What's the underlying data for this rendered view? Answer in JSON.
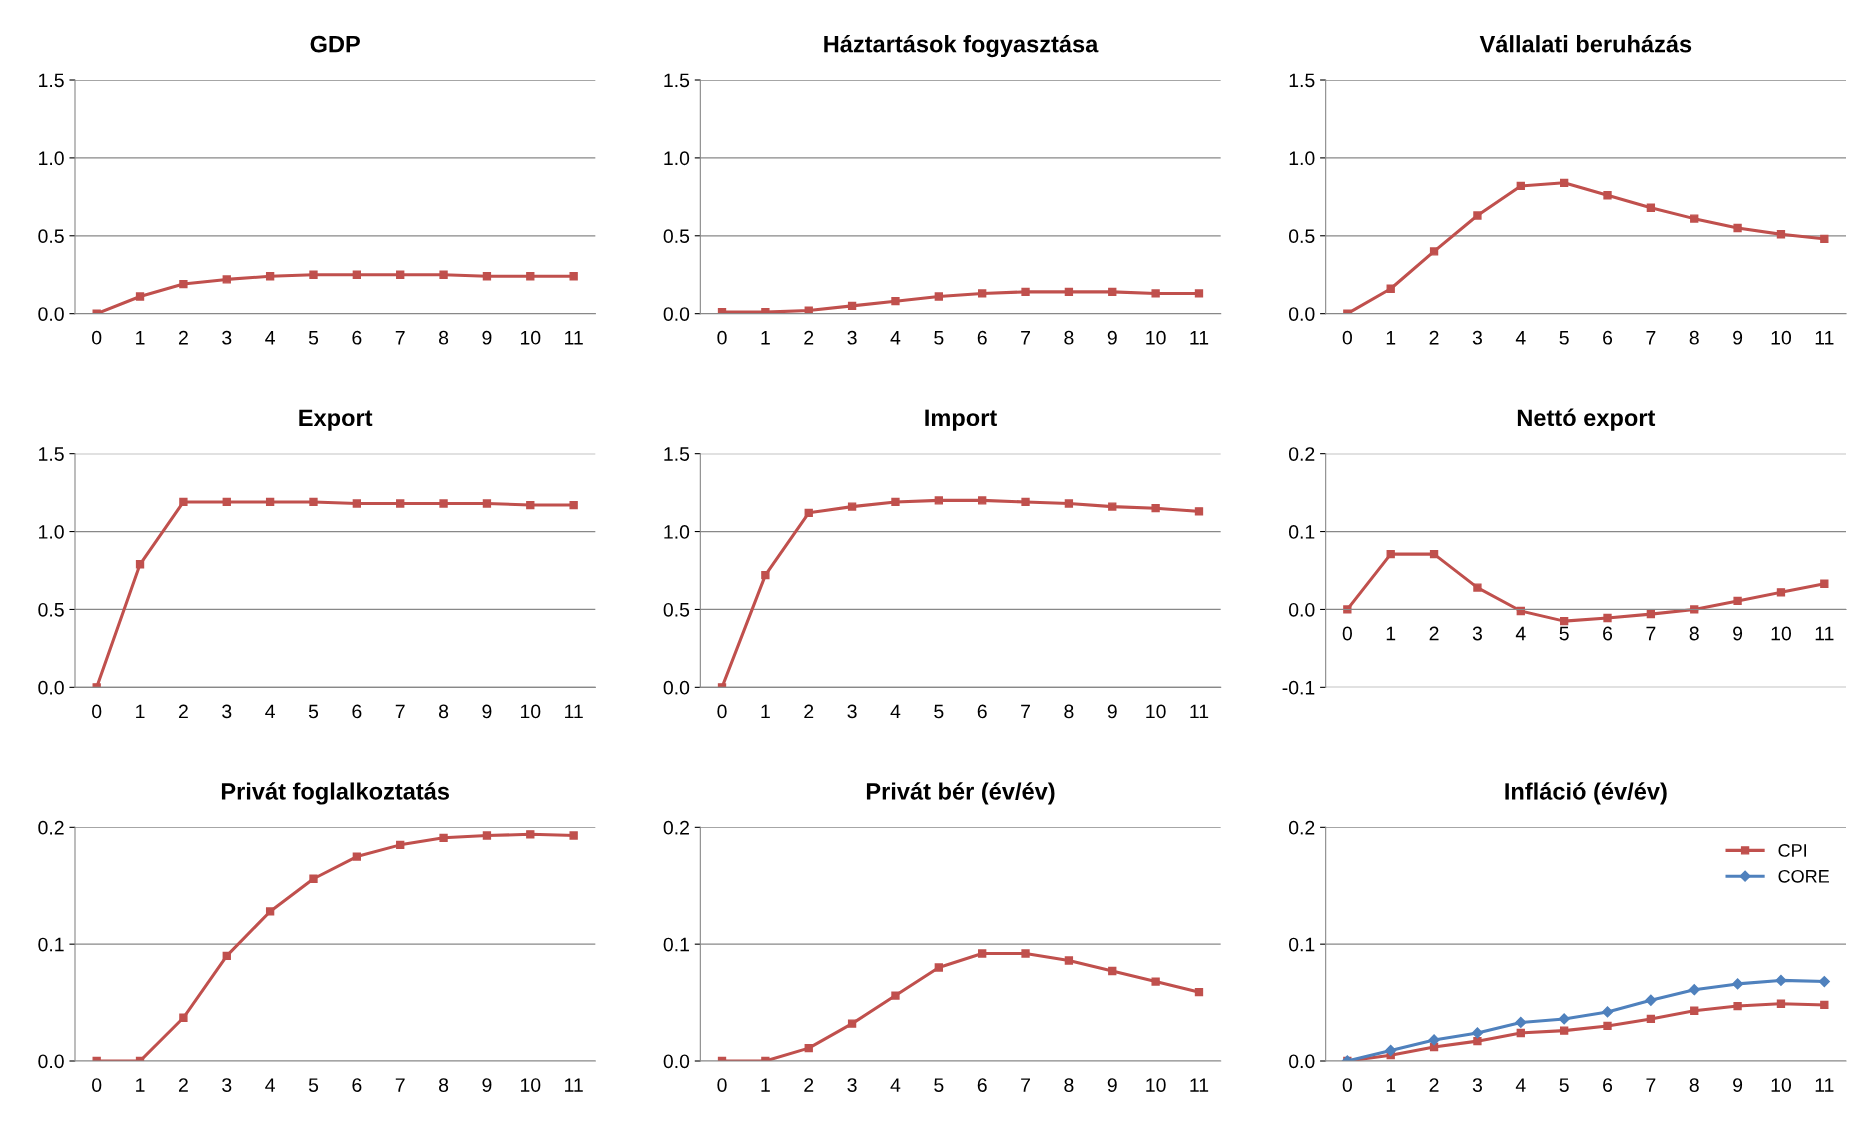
{
  "chart_data": [
    {
      "type": "line",
      "title": "GDP",
      "categories": [
        "0",
        "1",
        "2",
        "3",
        "4",
        "5",
        "6",
        "7",
        "8",
        "9",
        "10",
        "11"
      ],
      "series": [
        {
          "color": "#c0504d",
          "values": [
            0,
            0.11,
            0.19,
            0.22,
            0.24,
            0.25,
            0.25,
            0.25,
            0.25,
            0.24,
            0.24,
            0.24
          ]
        }
      ],
      "ylim": [
        0,
        1.5
      ],
      "yticks": [
        {
          "value": 0,
          "label": "0.0"
        },
        {
          "value": 0.5,
          "label": "0.5"
        },
        {
          "value": 1,
          "label": "1.0"
        },
        {
          "value": 1.5,
          "label": "1.5"
        }
      ],
      "grid": "y",
      "marker": "square",
      "legend": false
    },
    {
      "type": "line",
      "title": "Háztartások fogyasztása",
      "categories": [
        "0",
        "1",
        "2",
        "3",
        "4",
        "5",
        "6",
        "7",
        "8",
        "9",
        "10",
        "11"
      ],
      "series": [
        {
          "color": "#c0504d",
          "values": [
            0.01,
            0.01,
            0.02,
            0.05,
            0.08,
            0.11,
            0.13,
            0.14,
            0.14,
            0.14,
            0.13,
            0.13
          ]
        }
      ],
      "ylim": [
        0,
        1.5
      ],
      "yticks": [
        {
          "value": 0,
          "label": "0.0"
        },
        {
          "value": 0.5,
          "label": "0.5"
        },
        {
          "value": 1,
          "label": "1.0"
        },
        {
          "value": 1.5,
          "label": "1.5"
        }
      ],
      "grid": "y",
      "marker": "square",
      "legend": false
    },
    {
      "type": "line",
      "title": "Vállalati beruházás",
      "categories": [
        "0",
        "1",
        "2",
        "3",
        "4",
        "5",
        "6",
        "7",
        "8",
        "9",
        "10",
        "11"
      ],
      "series": [
        {
          "color": "#c0504d",
          "values": [
            0,
            0.16,
            0.4,
            0.63,
            0.82,
            0.84,
            0.76,
            0.68,
            0.61,
            0.55,
            0.51,
            0.48
          ]
        }
      ],
      "ylim": [
        0,
        1.5
      ],
      "yticks": [
        {
          "value": 0,
          "label": "0.0"
        },
        {
          "value": 0.5,
          "label": "0.5"
        },
        {
          "value": 1,
          "label": "1.0"
        },
        {
          "value": 1.5,
          "label": "1.5"
        }
      ],
      "grid": "y",
      "marker": "square",
      "legend": false
    },
    {
      "type": "line",
      "title": "Export",
      "categories": [
        "0",
        "1",
        "2",
        "3",
        "4",
        "5",
        "6",
        "7",
        "8",
        "9",
        "10",
        "11"
      ],
      "series": [
        {
          "color": "#c0504d",
          "values": [
            0,
            0.79,
            1.19,
            1.19,
            1.19,
            1.19,
            1.18,
            1.18,
            1.18,
            1.18,
            1.17,
            1.17
          ]
        }
      ],
      "ylim": [
        0,
        1.5
      ],
      "yticks": [
        {
          "value": 0,
          "label": "0.0"
        },
        {
          "value": 0.5,
          "label": "0.5"
        },
        {
          "value": 1,
          "label": "1.0"
        },
        {
          "value": 1.5,
          "label": "1.5"
        }
      ],
      "grid": "y",
      "marker": "square",
      "legend": false
    },
    {
      "type": "line",
      "title": "Import",
      "categories": [
        "0",
        "1",
        "2",
        "3",
        "4",
        "5",
        "6",
        "7",
        "8",
        "9",
        "10",
        "11"
      ],
      "series": [
        {
          "color": "#c0504d",
          "values": [
            0,
            0.72,
            1.12,
            1.16,
            1.19,
            1.2,
            1.2,
            1.19,
            1.18,
            1.16,
            1.15,
            1.13
          ]
        }
      ],
      "ylim": [
        0,
        1.5
      ],
      "yticks": [
        {
          "value": 0,
          "label": "0.0"
        },
        {
          "value": 0.5,
          "label": "0.5"
        },
        {
          "value": 1,
          "label": "1.0"
        },
        {
          "value": 1.5,
          "label": "1.5"
        }
      ],
      "grid": "y",
      "marker": "square",
      "legend": false
    },
    {
      "type": "line",
      "title": "Nettó export",
      "categories": [
        "0",
        "1",
        "2",
        "3",
        "4",
        "5",
        "6",
        "7",
        "8",
        "9",
        "10",
        "11"
      ],
      "series": [
        {
          "color": "#c0504d",
          "values": [
            0,
            0.071,
            0.071,
            0.028,
            -0.002,
            -0.015,
            -0.011,
            -0.006,
            0.0,
            0.011,
            0.022,
            0.033
          ]
        }
      ],
      "ylim": [
        -0.1,
        0.2
      ],
      "yticks": [
        {
          "value": -0.1,
          "label": "-0.1"
        },
        {
          "value": 0,
          "label": "0.0"
        },
        {
          "value": 0.1,
          "label": "0.1"
        },
        {
          "value": 0.2,
          "label": "0.2"
        }
      ],
      "grid": "y",
      "marker": "square",
      "legend": false
    },
    {
      "type": "line",
      "title": "Privát foglalkoztatás",
      "categories": [
        "0",
        "1",
        "2",
        "3",
        "4",
        "5",
        "6",
        "7",
        "8",
        "9",
        "10",
        "11"
      ],
      "series": [
        {
          "color": "#c0504d",
          "values": [
            0,
            0,
            0.037,
            0.09,
            0.128,
            0.156,
            0.175,
            0.185,
            0.191,
            0.193,
            0.194,
            0.193
          ]
        }
      ],
      "ylim": [
        0,
        0.2
      ],
      "yticks": [
        {
          "value": 0,
          "label": "0.0"
        },
        {
          "value": 0.1,
          "label": "0.1"
        },
        {
          "value": 0.2,
          "label": "0.2"
        }
      ],
      "grid": "y",
      "marker": "square",
      "legend": false
    },
    {
      "type": "line",
      "title": "Privát bér (év/év)",
      "categories": [
        "0",
        "1",
        "2",
        "3",
        "4",
        "5",
        "6",
        "7",
        "8",
        "9",
        "10",
        "11"
      ],
      "series": [
        {
          "color": "#c0504d",
          "values": [
            0,
            0,
            0.011,
            0.032,
            0.056,
            0.08,
            0.092,
            0.092,
            0.086,
            0.077,
            0.068,
            0.059
          ]
        }
      ],
      "ylim": [
        0,
        0.2
      ],
      "yticks": [
        {
          "value": 0,
          "label": "0.0"
        },
        {
          "value": 0.1,
          "label": "0.1"
        },
        {
          "value": 0.2,
          "label": "0.2"
        }
      ],
      "grid": "y",
      "marker": "square",
      "legend": false
    },
    {
      "type": "line",
      "title": "Infláció (év/év)",
      "categories": [
        "0",
        "1",
        "2",
        "3",
        "4",
        "5",
        "6",
        "7",
        "8",
        "9",
        "10",
        "11"
      ],
      "series": [
        {
          "name": "CPI",
          "color": "#c0504d",
          "marker": "square",
          "values": [
            0,
            0.005,
            0.012,
            0.017,
            0.024,
            0.026,
            0.03,
            0.036,
            0.043,
            0.047,
            0.049,
            0.048
          ]
        },
        {
          "name": "CORE",
          "color": "#4f81bd",
          "marker": "diamond",
          "values": [
            0,
            0.009,
            0.018,
            0.024,
            0.033,
            0.036,
            0.042,
            0.052,
            0.061,
            0.066,
            0.069,
            0.068
          ]
        }
      ],
      "ylim": [
        0,
        0.2
      ],
      "yticks": [
        {
          "value": 0,
          "label": "0.0"
        },
        {
          "value": 0.1,
          "label": "0.1"
        },
        {
          "value": 0.2,
          "label": "0.2"
        }
      ],
      "grid": "y",
      "legend": "top right"
    }
  ]
}
